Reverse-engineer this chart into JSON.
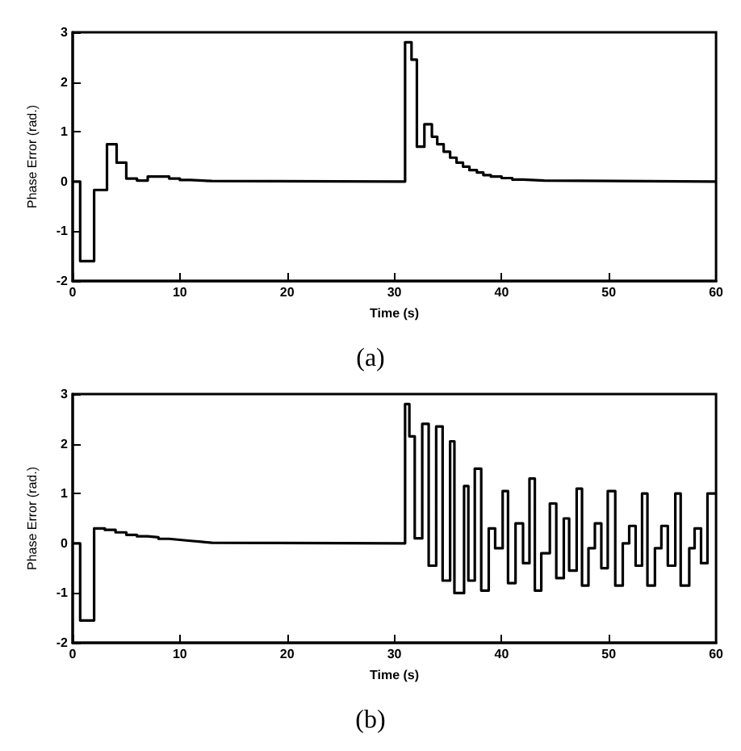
{
  "chart_data": [
    {
      "type": "step",
      "xlabel": "Time (s)",
      "ylabel": "Phase Error (rad.)",
      "annotations": [
        "(a)"
      ],
      "xlim": [
        0,
        60
      ],
      "xticks": [
        0,
        10,
        20,
        30,
        40,
        50,
        60
      ],
      "ylim": [
        -2,
        3
      ],
      "yticks": [
        -2,
        -1,
        0,
        1,
        2,
        3
      ],
      "grid": false,
      "marker": "none",
      "line_style": "solid",
      "series": [
        {
          "color": "#000000",
          "x": [
            0,
            0.7,
            2,
            3.2,
            4.1,
            5,
            6,
            7,
            9,
            10,
            11,
            13,
            31,
            31.6,
            32.1,
            32.8,
            33.5,
            34,
            34.6,
            35.2,
            35.8,
            36.4,
            37,
            37.7,
            38.3,
            39,
            40,
            41,
            42,
            44,
            60
          ],
          "values": [
            0,
            -1.6,
            -0.17,
            0.75,
            0.38,
            0.06,
            0.02,
            0.1,
            0.06,
            0.03,
            0.01,
            0,
            2.8,
            2.45,
            0.7,
            1.15,
            0.9,
            0.75,
            0.6,
            0.48,
            0.38,
            0.3,
            0.23,
            0.18,
            0.13,
            0.1,
            0.07,
            0.04,
            0.02,
            0,
            0
          ]
        }
      ]
    },
    {
      "type": "step",
      "xlabel": "Time (s)",
      "ylabel": "Phase Error (rad.)",
      "annotations": [
        "(b)"
      ],
      "xlim": [
        0,
        60
      ],
      "xticks": [
        0,
        10,
        20,
        30,
        40,
        50,
        60
      ],
      "ylim": [
        -2,
        3
      ],
      "yticks": [
        -2,
        -1,
        0,
        1,
        2,
        3
      ],
      "grid": false,
      "marker": "none",
      "line_style": "solid",
      "series": [
        {
          "color": "#000000",
          "x": [
            0,
            0.7,
            2,
            3,
            4,
            5,
            6,
            7,
            8,
            9,
            10,
            11,
            12,
            13,
            31,
            31.4,
            31.9,
            32.6,
            33.2,
            33.9,
            34.5,
            35.2,
            35.6,
            36.5,
            36.9,
            37.5,
            38.1,
            38.8,
            39.4,
            40.1,
            40.6,
            41.3,
            42,
            42.6,
            43.1,
            43.7,
            44.5,
            45.1,
            45.8,
            46.3,
            47,
            47.5,
            48.1,
            48.7,
            49.3,
            49.9,
            50.6,
            51.3,
            51.9,
            52.5,
            53.1,
            53.6,
            54.3,
            54.9,
            55.5,
            56.2,
            56.7,
            57.5,
            58,
            58.6,
            59.2,
            60
          ],
          "values": [
            0,
            -1.55,
            0.3,
            0.27,
            0.22,
            0.17,
            0.14,
            0.12,
            0.09,
            0.07,
            0.05,
            0.03,
            0.01,
            0,
            2.8,
            2.15,
            0.1,
            2.4,
            -0.45,
            2.35,
            -0.75,
            2.05,
            -1.0,
            1.15,
            -0.75,
            1.5,
            -0.95,
            0.3,
            -0.1,
            1.05,
            -0.8,
            0.4,
            -0.4,
            1.3,
            -0.95,
            -0.2,
            0.8,
            -0.7,
            0.5,
            -0.55,
            1.1,
            -0.85,
            -0.1,
            0.4,
            -0.5,
            1.05,
            -0.85,
            0,
            0.35,
            -0.45,
            1.0,
            -0.85,
            -0.1,
            0.35,
            -0.45,
            1.0,
            -0.85,
            -0.1,
            0.3,
            -0.4,
            1.0,
            1.0
          ]
        }
      ]
    }
  ]
}
